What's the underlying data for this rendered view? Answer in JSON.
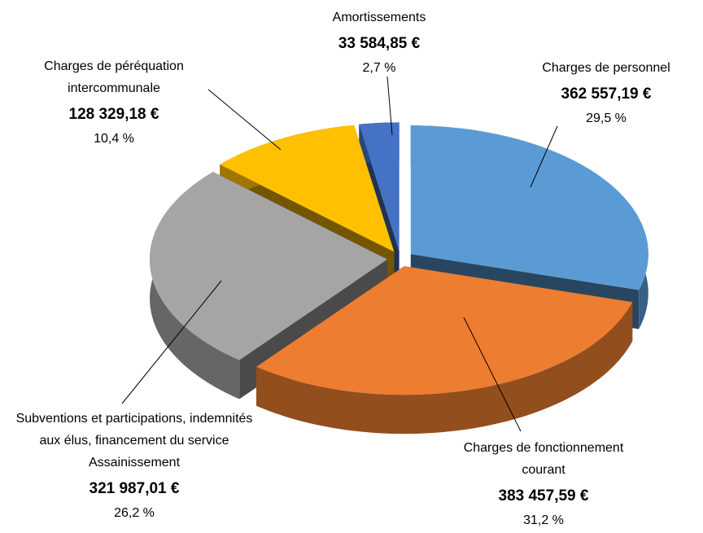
{
  "chart_data": {
    "type": "pie",
    "categories": [
      "Charges de personnel",
      "Charges de fonctionnement courant",
      "Subventions et participations, indemnités aux élus, financement du service Assainissement",
      "Charges de péréquation intercommunale",
      "Amortissements"
    ],
    "values": [
      29.5,
      31.2,
      26.2,
      10.4,
      2.7
    ],
    "value_labels": [
      "29,5 %",
      "31,2 %",
      "26,2 %",
      "10,4 %",
      "2,7 %"
    ],
    "amounts": [
      362557.19,
      383457.59,
      321987.01,
      128329.18,
      33584.85
    ],
    "amount_labels": [
      "362 557,19 €",
      "383 457,59 €",
      "321 987,01 €",
      "128 329,18 €",
      "33 584,85 €"
    ],
    "colors": [
      "#5b9bd5",
      "#ed7d31",
      "#a5a5a5",
      "#ffc000",
      "#4472c4"
    ]
  }
}
